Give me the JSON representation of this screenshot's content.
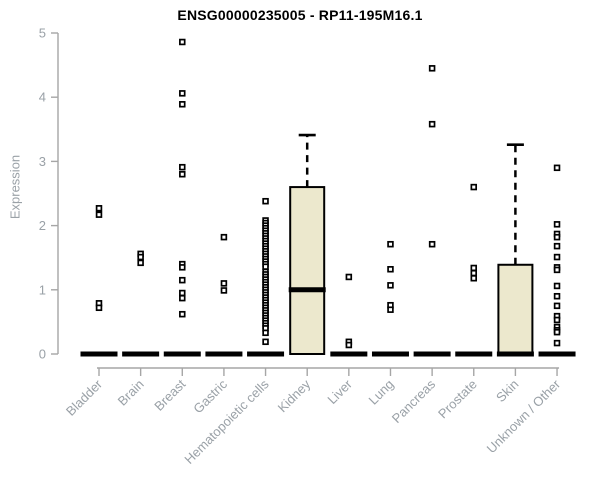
{
  "chart_data": {
    "type": "boxplot",
    "title": "ENSG00000235005 - RP11-195M16.1",
    "ylabel": "Expression",
    "xlabel": "",
    "ylim": [
      0,
      5
    ],
    "yticks": [
      0,
      1,
      2,
      3,
      4,
      5
    ],
    "grid": false,
    "legend": "none",
    "categories": [
      "Bladder",
      "Brain",
      "Breast",
      "Gastric",
      "Hematopoietic cells",
      "Kidney",
      "Liver",
      "Lung",
      "Pancreas",
      "Prostate",
      "Skin",
      "Unknown / Other"
    ],
    "boxes": [
      {
        "category": "Bladder",
        "q1": 0,
        "median": 0,
        "q3": 0,
        "whisker_high": 0,
        "points": [
          2.27,
          2.17,
          0.79,
          0.72
        ]
      },
      {
        "category": "Brain",
        "q1": 0,
        "median": 0,
        "q3": 0,
        "whisker_high": 0,
        "points": [
          1.56,
          1.51,
          1.42
        ]
      },
      {
        "category": "Breast",
        "q1": 0,
        "median": 0,
        "q3": 0,
        "whisker_high": 0,
        "points": [
          4.86,
          4.06,
          3.89,
          2.91,
          2.8,
          1.4,
          1.35,
          1.15,
          0.95,
          0.87,
          0.62
        ]
      },
      {
        "category": "Gastric",
        "q1": 0,
        "median": 0,
        "q3": 0,
        "whisker_high": 0,
        "points": [
          1.82,
          1.1,
          0.99
        ]
      },
      {
        "category": "Hematopoietic cells",
        "q1": 0,
        "median": 0,
        "q3": 0,
        "whisker_high": 0,
        "points": [
          2.38,
          2.08,
          2.04,
          2.0,
          1.96,
          1.92,
          1.88,
          1.84,
          1.8,
          1.76,
          1.72,
          1.68,
          1.64,
          1.6,
          1.56,
          1.52,
          1.48,
          1.44,
          1.4,
          1.36,
          1.28,
          1.24,
          1.2,
          1.16,
          1.12,
          1.08,
          1.04,
          1.0,
          0.96,
          0.92,
          0.88,
          0.84,
          0.8,
          0.76,
          0.72,
          0.68,
          0.64,
          0.6,
          0.56,
          0.52,
          0.48,
          0.44,
          0.4,
          0.33,
          0.19
        ]
      },
      {
        "category": "Kidney",
        "q1": 0,
        "median": 1.0,
        "q3": 2.6,
        "whisker_high": 3.41,
        "points": []
      },
      {
        "category": "Liver",
        "q1": 0,
        "median": 0,
        "q3": 0,
        "whisker_high": 0,
        "points": [
          1.2,
          0.19,
          0.14
        ]
      },
      {
        "category": "Lung",
        "q1": 0,
        "median": 0,
        "q3": 0,
        "whisker_high": 0,
        "points": [
          1.71,
          1.32,
          1.07,
          0.76,
          0.69
        ]
      },
      {
        "category": "Pancreas",
        "q1": 0,
        "median": 0,
        "q3": 0,
        "whisker_high": 0,
        "points": [
          4.45,
          3.58,
          1.71
        ]
      },
      {
        "category": "Prostate",
        "q1": 0,
        "median": 0,
        "q3": 0,
        "whisker_high": 0,
        "points": [
          2.6,
          1.34,
          1.26,
          1.18
        ]
      },
      {
        "category": "Skin",
        "q1": 0,
        "median": 0,
        "q3": 1.39,
        "whisker_high": 3.26,
        "points": []
      },
      {
        "category": "Unknown / Other",
        "q1": 0,
        "median": 0,
        "q3": 0,
        "whisker_high": 0,
        "points": [
          2.9,
          2.02,
          1.87,
          1.82,
          1.68,
          1.51,
          1.35,
          1.31,
          1.06,
          0.9,
          0.75,
          0.59,
          0.53,
          0.42,
          0.37,
          0.34,
          0.17
        ]
      }
    ],
    "colors": {
      "background": "#ffffff",
      "box_fill": "#ece8cd",
      "box_stroke": "#000000",
      "median": "#000000",
      "marker_stroke": "#000000",
      "marker_fill": "#ffffff",
      "axis_line": "#a6a6a6",
      "axis_text": "#9aa1a7",
      "title_text": "#000000"
    }
  }
}
